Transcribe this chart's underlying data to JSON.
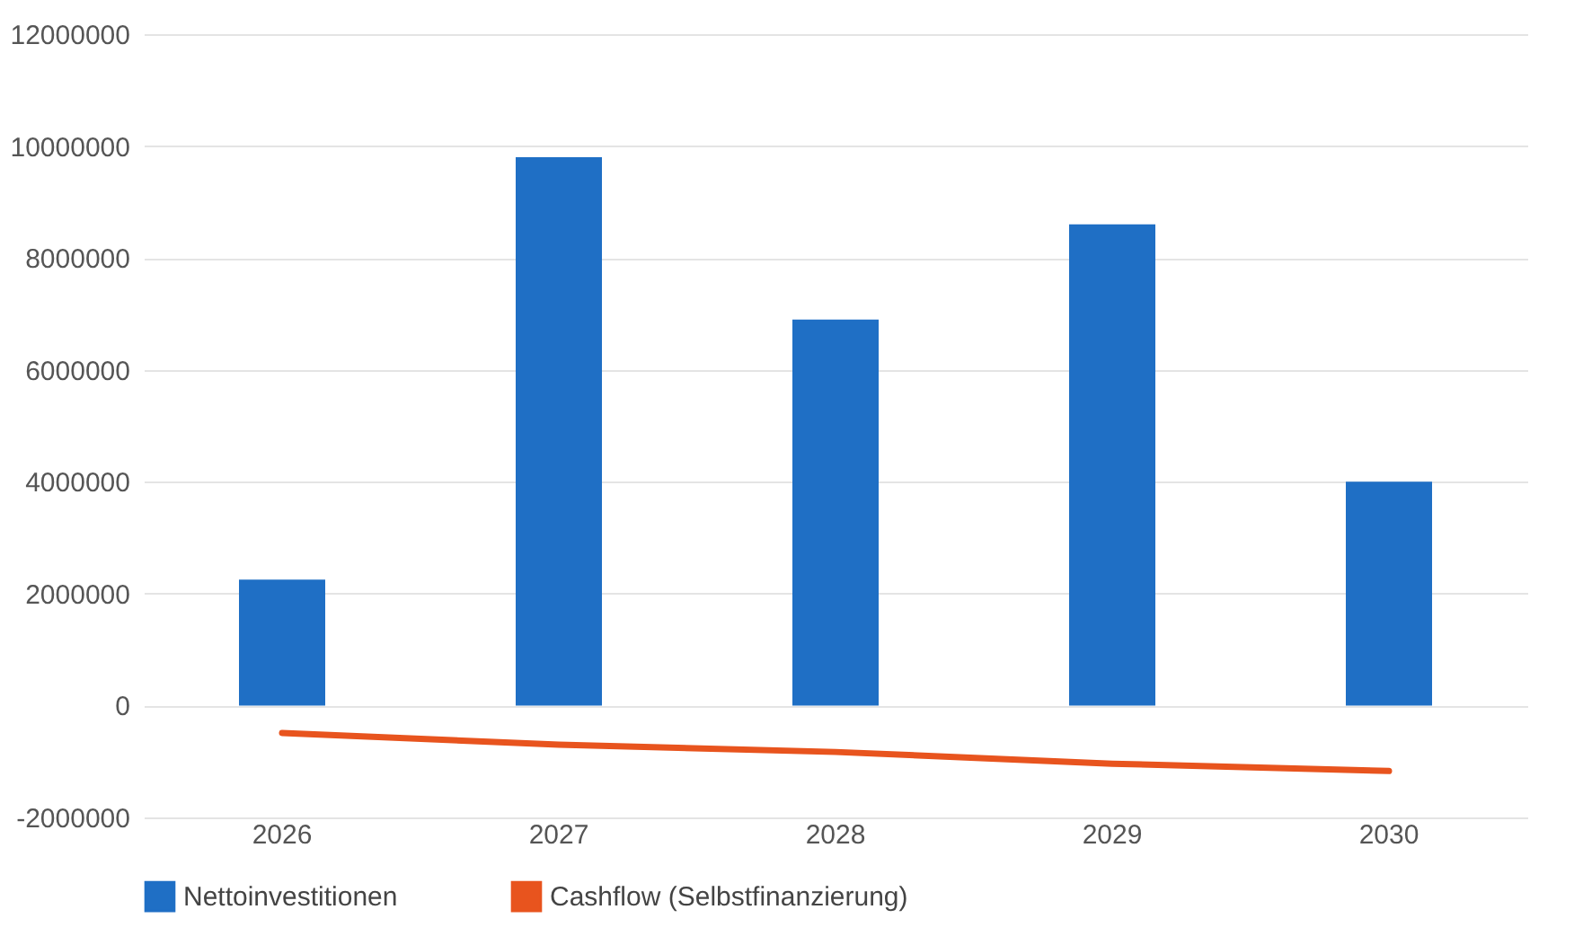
{
  "chart_data": {
    "type": "bar",
    "categories": [
      "2026",
      "2027",
      "2028",
      "2029",
      "2030"
    ],
    "series": [
      {
        "name": "Nettoinvestitionen",
        "color": "#1f6fc5",
        "values": [
          2250000,
          9800000,
          6900000,
          8600000,
          4000000
        ]
      },
      {
        "name": "Cashflow (Selbstfinanzierung)",
        "type": "line",
        "color": "#e8541e",
        "values": [
          -490000,
          -700000,
          -830000,
          -1040000,
          -1170000
        ]
      }
    ],
    "ylim": [
      -2000000,
      12000000
    ],
    "yticks": [
      -2000000,
      0,
      2000000,
      4000000,
      6000000,
      8000000,
      10000000,
      12000000
    ],
    "grid": "y",
    "legend": "bottom"
  }
}
